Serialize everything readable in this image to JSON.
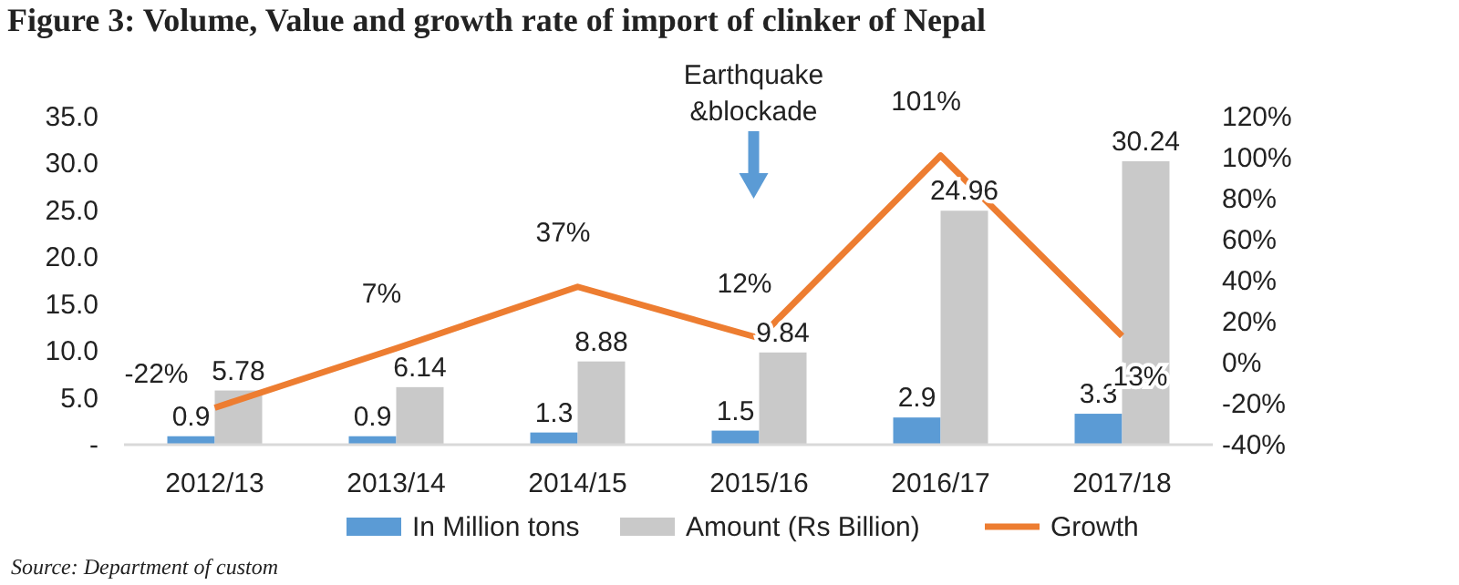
{
  "chart_data": {
    "type": "bar",
    "title": "Figure 3: Volume, Value and growth rate of import of clinker of Nepal",
    "categories": [
      "2012/13",
      "2013/14",
      "2014/15",
      "2015/16",
      "2016/17",
      "2017/18"
    ],
    "series": [
      {
        "name": "In Million tons",
        "color": "#5b9bd5",
        "values": [
          0.9,
          0.9,
          1.3,
          1.5,
          2.9,
          3.3
        ]
      },
      {
        "name": "Amount (Rs Billion)",
        "color": "#c9c9c9",
        "values": [
          5.78,
          6.14,
          8.88,
          9.84,
          24.96,
          30.24
        ]
      },
      {
        "name": "Growth",
        "type": "line",
        "axis": "y2",
        "color": "#ed7d31",
        "values": [
          -22,
          7,
          37,
          12,
          101,
          13
        ],
        "value_labels": [
          "-22%",
          "7%",
          "37%",
          "12%",
          "101%",
          "13%"
        ]
      }
    ],
    "ylim": [
      0,
      35
    ],
    "yticks": [
      {
        "value": 0,
        "label": "-"
      },
      {
        "value": 5,
        "label": "5.0"
      },
      {
        "value": 10,
        "label": "10.0"
      },
      {
        "value": 15,
        "label": "15.0"
      },
      {
        "value": 20,
        "label": "20.0"
      },
      {
        "value": 25,
        "label": "25.0"
      },
      {
        "value": 30,
        "label": "30.0"
      },
      {
        "value": 35,
        "label": "35.0"
      }
    ],
    "y2lim": [
      -40,
      120
    ],
    "y2ticks": [
      {
        "value": -40,
        "label": "-40%"
      },
      {
        "value": -20,
        "label": "-20%"
      },
      {
        "value": 0,
        "label": "0%"
      },
      {
        "value": 20,
        "label": "20%"
      },
      {
        "value": 40,
        "label": "40%"
      },
      {
        "value": 60,
        "label": "60%"
      },
      {
        "value": 80,
        "label": "80%"
      },
      {
        "value": 100,
        "label": "100%"
      },
      {
        "value": 120,
        "label": "120%"
      }
    ],
    "data_labels": true,
    "grid": false,
    "legend": "bottom",
    "marker": "none",
    "annotations": [
      "Earthquake\n&blockade",
      "Source: Department of custom"
    ]
  }
}
